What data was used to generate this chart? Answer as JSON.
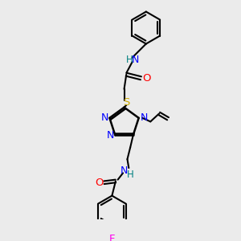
{
  "background_color": "#ebebeb",
  "atom_colors": {
    "N": "#0000ff",
    "O": "#ff0000",
    "S": "#ccaa00",
    "F": "#ff00ee",
    "H": "#008080",
    "C": "#000000"
  },
  "bond_color": "#000000",
  "figsize": [
    3.0,
    3.0
  ],
  "dpi": 100
}
